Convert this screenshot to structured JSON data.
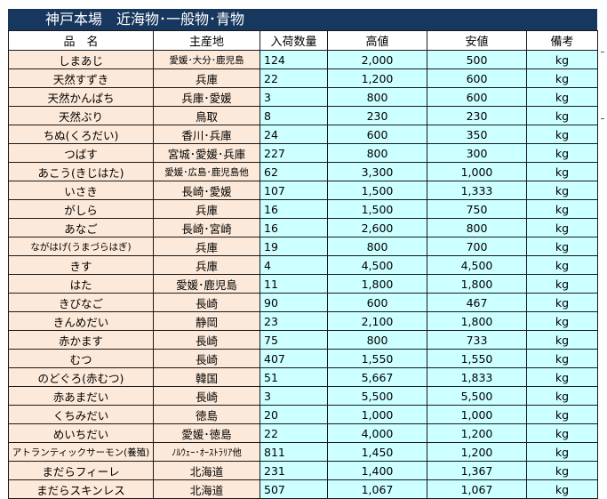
{
  "title": "神戸本場　近海物･一般物･青物",
  "headers": [
    "品　名",
    "主産地",
    "入荷数量",
    "高値",
    "安値",
    "備考"
  ],
  "rows": [
    {
      "name": "しまあじ",
      "origin": "愛媛･大分･鹿児島",
      "qty": "124",
      "high": "2,000",
      "low": "500",
      "unit": "kg"
    },
    {
      "name": "天然すずき",
      "origin": "兵庫",
      "qty": "22",
      "high": "1,200",
      "low": "600",
      "unit": "kg"
    },
    {
      "name": "天然かんぱち",
      "origin": "兵庫･愛媛",
      "qty": "3",
      "high": "800",
      "low": "600",
      "unit": "kg"
    },
    {
      "name": "天然ぶり",
      "origin": "鳥取",
      "qty": "8",
      "high": "230",
      "low": "230",
      "unit": "kg"
    },
    {
      "name": "ちぬ(くろだい)",
      "origin": "香川･兵庫",
      "qty": "24",
      "high": "600",
      "low": "350",
      "unit": "kg"
    },
    {
      "name": "つばす",
      "origin": "宮城･愛媛･兵庫",
      "qty": "227",
      "high": "800",
      "low": "300",
      "unit": "kg"
    },
    {
      "name": "あこう(きじはた)",
      "origin": "愛媛･広島･鹿児島他",
      "qty": "62",
      "high": "3,300",
      "low": "1,000",
      "unit": "kg"
    },
    {
      "name": "いさき",
      "origin": "長崎･愛媛",
      "qty": "107",
      "high": "1,500",
      "low": "1,333",
      "unit": "kg"
    },
    {
      "name": "がしら",
      "origin": "兵庫",
      "qty": "16",
      "high": "1,500",
      "low": "750",
      "unit": "kg"
    },
    {
      "name": "あなご",
      "origin": "長崎･宮崎",
      "qty": "16",
      "high": "2,600",
      "low": "800",
      "unit": "kg"
    },
    {
      "name": "ながはげ(うまづらはぎ)",
      "origin": "兵庫",
      "qty": "19",
      "high": "800",
      "low": "700",
      "unit": "kg"
    },
    {
      "name": "きす",
      "origin": "兵庫",
      "qty": "4",
      "high": "4,500",
      "low": "4,500",
      "unit": "kg"
    },
    {
      "name": "はた",
      "origin": "愛媛･鹿児島",
      "qty": "11",
      "high": "1,800",
      "low": "1,800",
      "unit": "kg"
    },
    {
      "name": "きびなご",
      "origin": "長崎",
      "qty": "90",
      "high": "600",
      "low": "467",
      "unit": "kg"
    },
    {
      "name": "きんめだい",
      "origin": "静岡",
      "qty": "23",
      "high": "2,100",
      "low": "1,800",
      "unit": "kg"
    },
    {
      "name": "赤かます",
      "origin": "長崎",
      "qty": "75",
      "high": "800",
      "low": "733",
      "unit": "kg"
    },
    {
      "name": "むつ",
      "origin": "長崎",
      "qty": "407",
      "high": "1,550",
      "low": "1,550",
      "unit": "kg"
    },
    {
      "name": "のどぐろ(赤むつ)",
      "origin": "韓国",
      "qty": "51",
      "high": "5,667",
      "low": "1,833",
      "unit": "kg"
    },
    {
      "name": "赤あまだい",
      "origin": "長崎",
      "qty": "3",
      "high": "5,500",
      "low": "5,500",
      "unit": "kg"
    },
    {
      "name": "くちみだい",
      "origin": "徳島",
      "qty": "20",
      "high": "1,000",
      "low": "1,000",
      "unit": "kg"
    },
    {
      "name": "めいちだい",
      "origin": "愛媛･徳島",
      "qty": "22",
      "high": "4,000",
      "low": "1,200",
      "unit": "kg"
    },
    {
      "name": "アトランティックサーモン(養殖)",
      "origin": "ﾉﾙｳｪｰ･ｵｰｽﾄﾗﾘｱ他",
      "qty": "811",
      "high": "1,450",
      "low": "1,200",
      "unit": "kg"
    },
    {
      "name": "まだらフィーレ",
      "origin": "北海道",
      "qty": "231",
      "high": "1,400",
      "low": "1,367",
      "unit": "kg"
    },
    {
      "name": "まだらスキンレス",
      "origin": "北海道",
      "qty": "507",
      "high": "1,067",
      "low": "1,067",
      "unit": "kg"
    }
  ]
}
